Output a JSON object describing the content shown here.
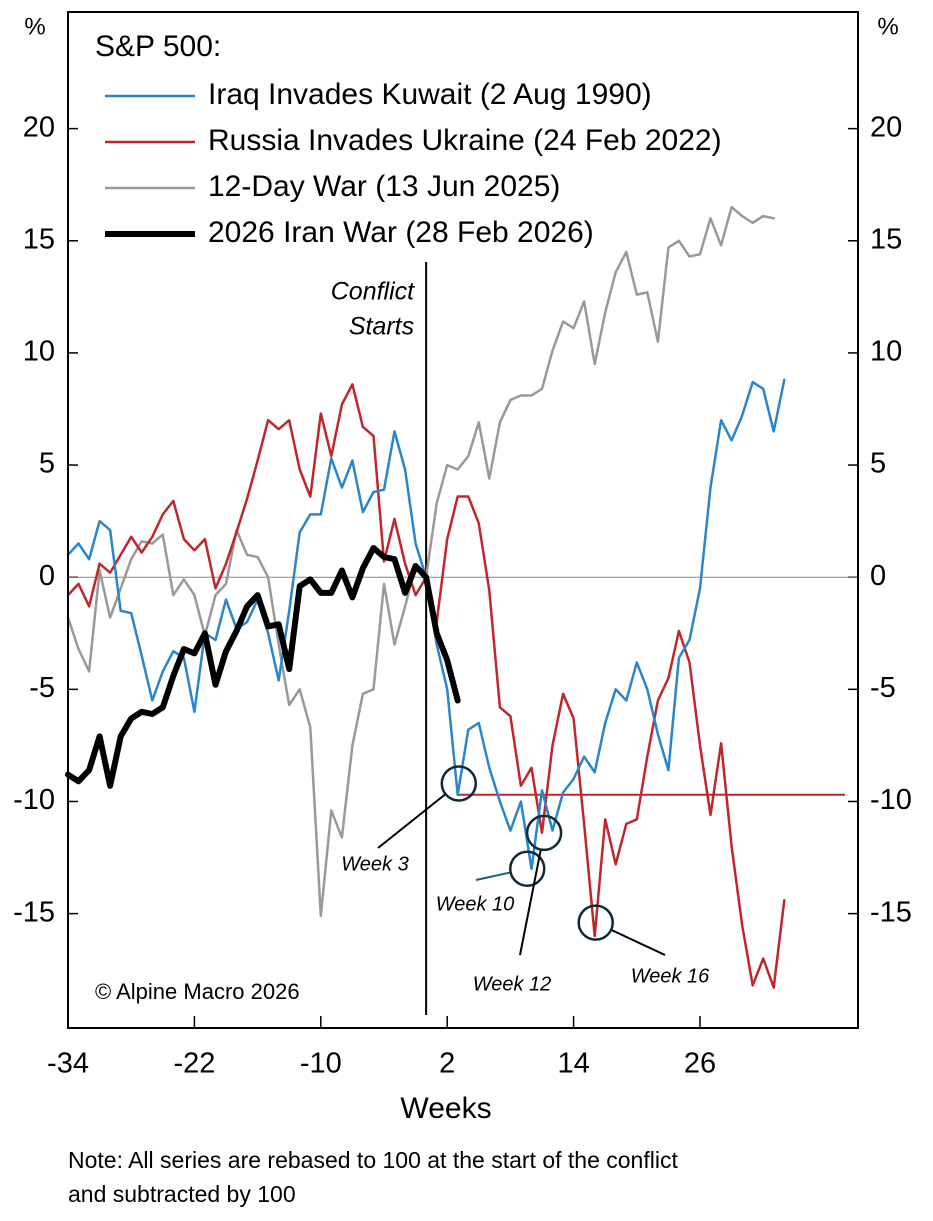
{
  "chart_data": {
    "type": "line",
    "legend_title": "S&P 500:",
    "y_label": "%",
    "x_label": "Weeks",
    "copyright": "© Alpine Macro 2026",
    "note": [
      "Note: All series are rebased to 100 at the start of the conflict",
      "and subtracted by 100"
    ],
    "vline": {
      "value": 0,
      "label": [
        "Conflict",
        "Starts"
      ]
    },
    "hline": {
      "value": -9.7,
      "x_start": 3,
      "color": "#c0272d"
    },
    "xlim": [
      -34,
      41
    ],
    "xticks": [
      -34,
      -22,
      -10,
      2,
      14,
      26
    ],
    "ylim": [
      -20.1,
      25.2
    ],
    "yticks": [
      -15,
      -10,
      -5,
      0,
      5,
      10,
      15,
      20
    ],
    "legend": "upper left",
    "x": [
      -34,
      -33,
      -32,
      -31,
      -30,
      -29,
      -28,
      -27,
      -26,
      -25,
      -24,
      -23,
      -22,
      -21,
      -20,
      -19,
      -18,
      -17,
      -16,
      -15,
      -14,
      -13,
      -12,
      -11,
      -10,
      -9,
      -8,
      -7,
      -6,
      -5,
      -4,
      -3,
      -2,
      -1,
      0,
      1,
      2,
      3,
      4,
      5,
      6,
      7,
      8,
      9,
      10,
      11,
      12,
      13,
      14,
      15,
      16,
      17,
      18,
      19,
      20,
      21,
      22,
      23,
      24,
      25,
      26,
      27,
      28,
      29,
      30,
      31,
      32,
      33,
      34
    ],
    "series": [
      {
        "name": "Iraq Invades Kuwait (2 Aug 1990)",
        "color": "#2a86cc",
        "width": 2.5,
        "values": [
          1.0,
          1.5,
          0.8,
          2.5,
          2.1,
          -1.5,
          -1.6,
          -3.5,
          -5.5,
          -4.2,
          -3.3,
          -3.6,
          -6.0,
          -2.5,
          -2.8,
          -1.0,
          -2.3,
          -2.0,
          -1.0,
          -2.5,
          -4.6,
          -1.5,
          2.0,
          2.8,
          2.8,
          5.3,
          4.0,
          5.2,
          2.9,
          3.8,
          3.9,
          6.5,
          4.8,
          1.5,
          0,
          -3.0,
          -5.0,
          -9.7,
          -6.8,
          -6.5,
          -8.5,
          -10.0,
          -11.3,
          -10.0,
          -13.0,
          -9.5,
          -11.3,
          -9.6,
          -9.0,
          -8.0,
          -8.7,
          -6.5,
          -5.0,
          -5.5,
          -3.8,
          -5.0,
          -7.0,
          -8.6,
          -3.6,
          -2.8,
          -0.5,
          4.0,
          7.0,
          6.1,
          7.2,
          8.7,
          8.4,
          6.5,
          8.8
        ]
      },
      {
        "name": "Russia Invades Ukraine (24 Feb 2022)",
        "color": "#c0272d",
        "width": 2.5,
        "values": [
          -0.8,
          -0.3,
          -1.3,
          0.6,
          0.2,
          1.0,
          1.8,
          1.1,
          1.8,
          2.8,
          3.4,
          1.7,
          1.2,
          1.7,
          -0.5,
          0.6,
          2.0,
          3.5,
          5.2,
          7.0,
          6.6,
          7.0,
          4.8,
          3.6,
          7.3,
          5.4,
          7.7,
          8.6,
          6.7,
          6.3,
          0.7,
          2.6,
          0.6,
          -0.8,
          0,
          -2.0,
          1.7,
          3.6,
          3.6,
          2.4,
          -0.6,
          -5.8,
          -6.2,
          -9.3,
          -8.5,
          -11.4,
          -7.5,
          -5.2,
          -6.3,
          -11.0,
          -16.0,
          -10.8,
          -12.8,
          -11.0,
          -10.8,
          -8.0,
          -5.5,
          -4.5,
          -2.4,
          -3.8,
          -7.5,
          -10.6,
          -7.4,
          -12.0,
          -15.5,
          -18.2,
          -17.0,
          -18.3,
          -14.4
        ]
      },
      {
        "name": "12-Day War (13 Jun 2025)",
        "color": "#999999",
        "width": 2.5,
        "values": [
          -1.8,
          -3.2,
          -4.2,
          0.3,
          -1.8,
          -0.5,
          0.8,
          1.6,
          1.5,
          1.9,
          -0.8,
          -0.1,
          -0.8,
          -2.6,
          -0.8,
          -0.3,
          2.1,
          1.0,
          0.9,
          0.0,
          -3.0,
          -5.7,
          -5.0,
          -6.7,
          -15.1,
          -10.4,
          -11.6,
          -7.5,
          -5.2,
          -5.0,
          -0.3,
          -3.0,
          -1.3,
          0.5,
          0,
          3.3,
          5.0,
          4.8,
          5.4,
          6.9,
          4.4,
          6.9,
          7.9,
          8.1,
          8.1,
          8.4,
          10.1,
          11.4,
          11.1,
          12.3,
          9.5,
          11.8,
          13.6,
          14.5,
          12.6,
          12.7,
          10.5,
          14.7,
          15.0,
          14.3,
          14.4,
          16.0,
          14.8,
          16.5,
          16.1,
          15.8,
          16.1,
          16.0,
          null
        ]
      },
      {
        "name": "2026 Iran War (28 Feb 2026)",
        "color": "#000000",
        "width": 6,
        "values": [
          -8.8,
          -9.1,
          -8.6,
          -7.1,
          -9.3,
          -7.1,
          -6.3,
          -6.0,
          -6.1,
          -5.8,
          -4.4,
          -3.2,
          -3.4,
          -2.5,
          -4.8,
          -3.3,
          -2.4,
          -1.3,
          -0.8,
          -2.2,
          -2.1,
          -4.1,
          -0.4,
          -0.1,
          -0.7,
          -0.7,
          0.3,
          -0.9,
          0.4,
          1.3,
          0.9,
          0.8,
          -0.7,
          0.5,
          0,
          -2.5,
          -3.7,
          -5.5,
          null,
          null,
          null,
          null,
          null,
          null,
          null,
          null,
          null,
          null,
          null,
          null,
          null,
          null,
          null,
          null,
          null,
          null,
          null,
          null,
          null,
          null,
          null,
          null,
          null,
          null,
          null,
          null,
          null,
          null,
          null
        ]
      }
    ],
    "annotations": [
      {
        "label": "Week 3",
        "x": 3.1,
        "y": -9.2
      },
      {
        "label": "Week 10",
        "x": 9.6,
        "y": -13.0
      },
      {
        "label": "Week 12",
        "x": 11.2,
        "y": -11.4
      },
      {
        "label": "Week 16",
        "x": 16.1,
        "y": -15.4
      }
    ]
  }
}
